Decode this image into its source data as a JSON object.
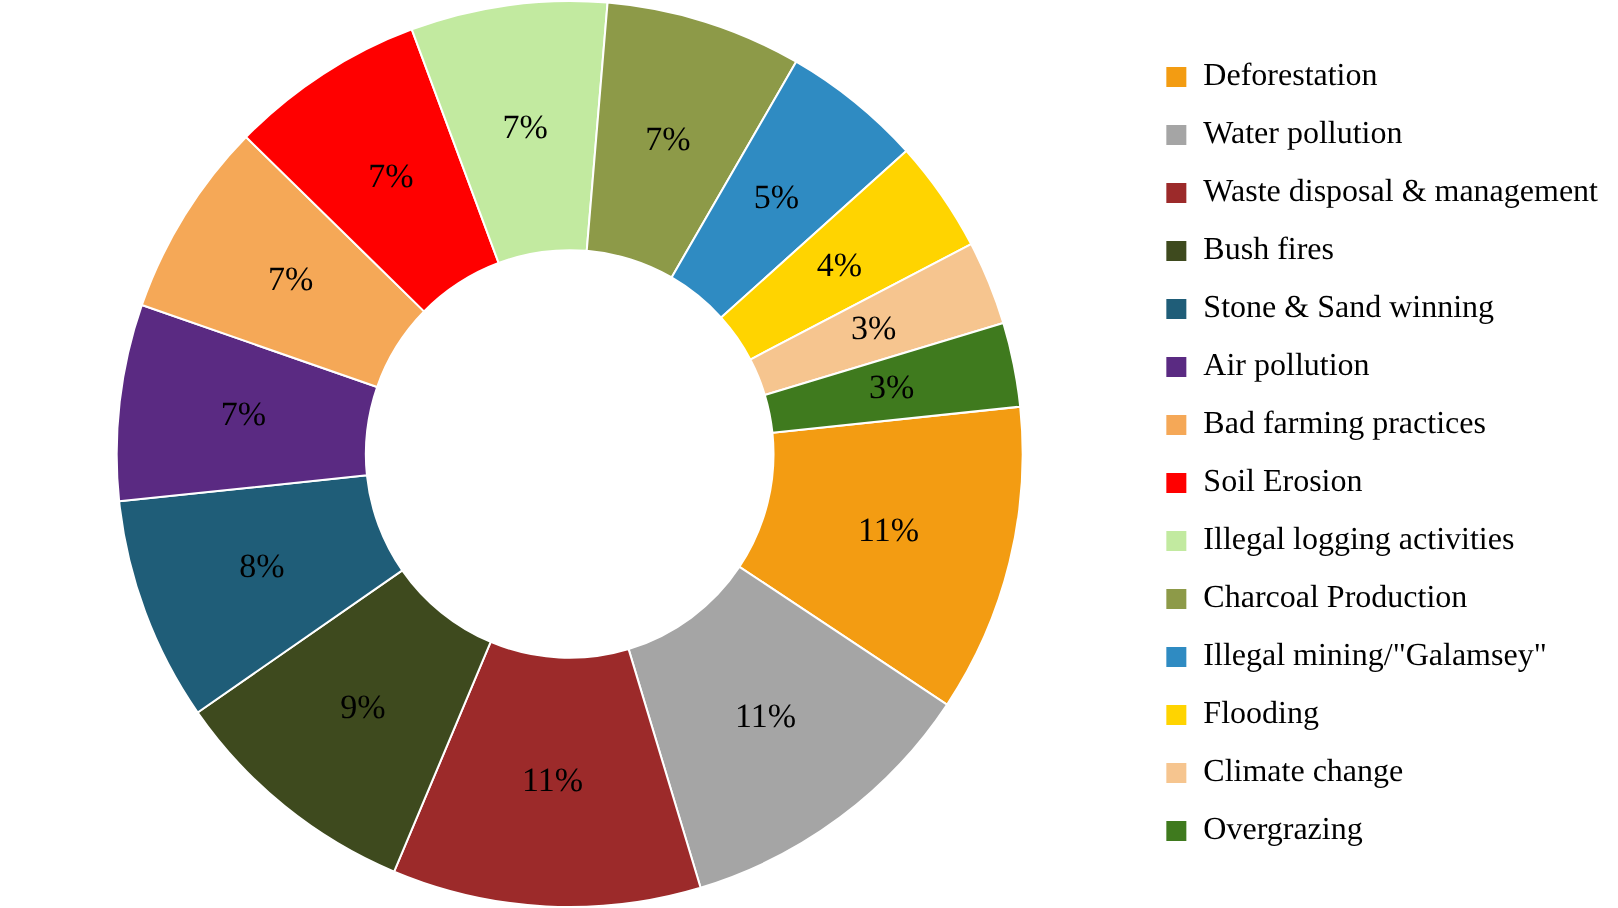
{
  "chart_data": {
    "type": "donut",
    "categories": [
      "Deforestation",
      "Water pollution",
      "Waste disposal & management",
      "Bush fires",
      "Stone & Sand winning",
      "Air pollution",
      "Bad farming practices",
      "Soil Erosion",
      "Illegal logging activities",
      "Charcoal Production",
      "Illegal mining/\"Galamsey\"",
      "Flooding",
      "Climate change",
      "Overgrazing"
    ],
    "values": [
      11,
      11,
      11,
      9,
      8,
      7,
      7,
      7,
      7,
      7,
      5,
      4,
      3,
      3
    ],
    "value_labels": [
      "11%",
      "11%",
      "11%",
      "9%",
      "8%",
      "7%",
      "7%",
      "7%",
      "7%",
      "7%",
      "5%",
      "4%",
      "3%",
      "3%"
    ],
    "colors": [
      "#f39c12",
      "#a5a5a5",
      "#9c2a2a",
      "#3e4a1e",
      "#1f5d78",
      "#5a2a82",
      "#f5a857",
      "#ff0000",
      "#c2eaa0",
      "#8d9a48",
      "#2f8bc2",
      "#ffd400",
      "#f6c58f",
      "#3f7a1e"
    ],
    "legend": "right"
  }
}
